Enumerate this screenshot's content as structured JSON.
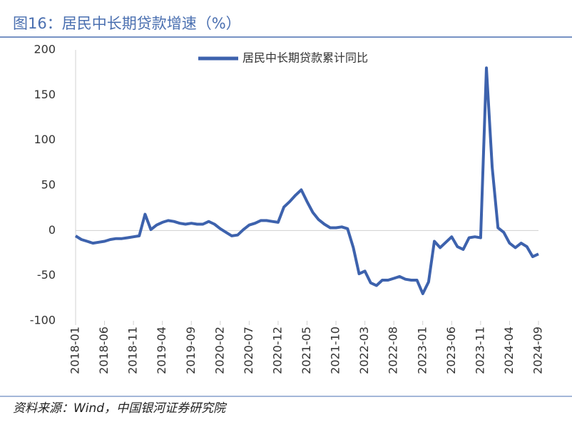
{
  "chart_data": {
    "type": "line",
    "title": "图16：居民中长期贷款增速（%）",
    "source": "资料来源：Wind，中国银河证券研究院",
    "categories": [
      "2018-01",
      null,
      null,
      null,
      null,
      "2018-06",
      null,
      null,
      null,
      null,
      "2018-11",
      null,
      null,
      null,
      null,
      "2019-04",
      null,
      null,
      null,
      null,
      "2019-09",
      null,
      null,
      null,
      null,
      "2020-02",
      null,
      null,
      null,
      null,
      "2020-07",
      null,
      null,
      null,
      null,
      "2020-12",
      null,
      null,
      null,
      null,
      "2021-05",
      null,
      null,
      null,
      null,
      "2021-10",
      null,
      null,
      null,
      null,
      "2022-03",
      null,
      null,
      null,
      null,
      "2022-08",
      null,
      null,
      null,
      null,
      "2023-01",
      null,
      null,
      null,
      null,
      "2023-06",
      null,
      null,
      null,
      null,
      "2023-11",
      null,
      null,
      null,
      null,
      "2024-04",
      null,
      null,
      null,
      null,
      "2024-09"
    ],
    "series": [
      {
        "name": "居民中长期贷款累计同比",
        "color": "#3d62ad",
        "values": [
          -6,
          -10,
          -12,
          -14,
          -13,
          -12,
          -10,
          -9,
          -9,
          -8,
          -7,
          -6,
          18,
          1,
          6,
          9,
          11,
          10,
          8,
          7,
          8,
          7,
          7,
          10,
          7,
          2,
          -2,
          -6,
          -5,
          1,
          6,
          8,
          11,
          11,
          10,
          9,
          26,
          32,
          39,
          45,
          32,
          20,
          12,
          7,
          3,
          3,
          4,
          2,
          -19,
          -48,
          -45,
          -58,
          -61,
          -55,
          -55,
          -53,
          -51,
          -54,
          -55,
          -55,
          -70,
          -57,
          -12,
          -19,
          -13,
          -7,
          -18,
          -21,
          -8,
          -7,
          -8,
          180,
          70,
          3,
          -2,
          -14,
          -19,
          -14,
          -18,
          -29,
          -26
        ]
      }
    ],
    "ylim": [
      -100,
      200
    ],
    "yticks": [
      -100,
      -50,
      0,
      50,
      100,
      150,
      200
    ],
    "grid": false
  }
}
